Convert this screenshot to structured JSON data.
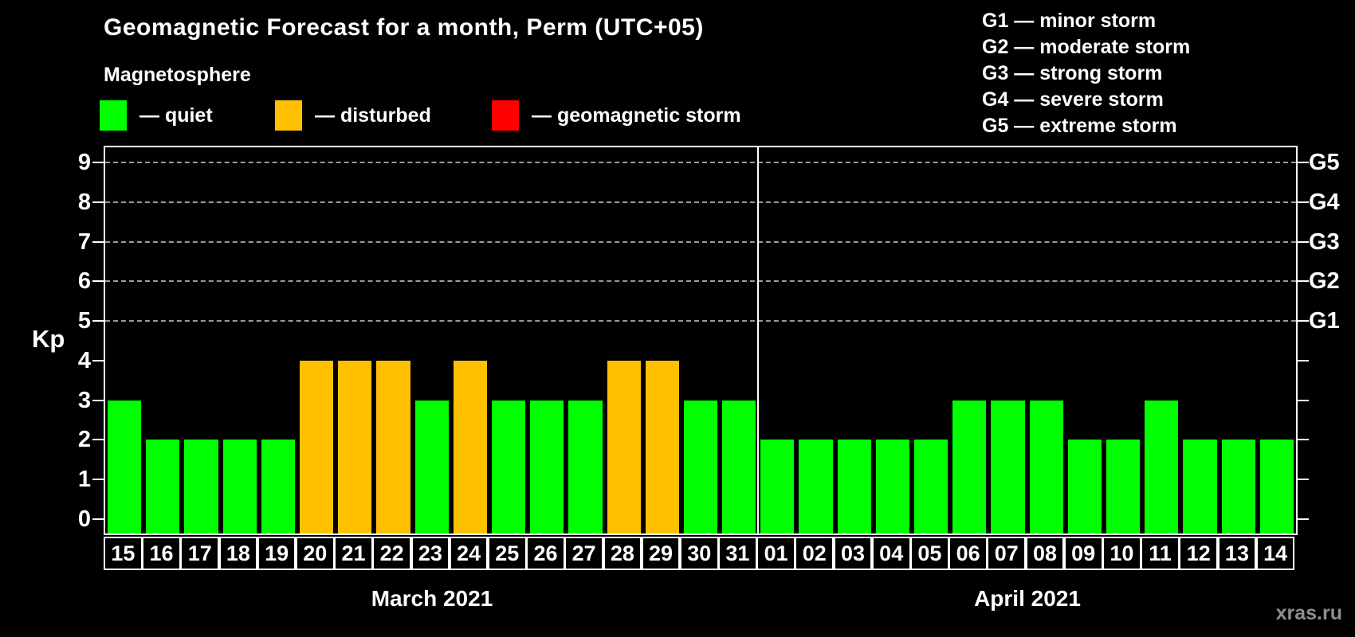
{
  "title": "Geomagnetic Forecast for a month, Perm (UTC+05)",
  "subtitle": "Magnetosphere",
  "legend": {
    "items": [
      {
        "key": "quiet",
        "label": "— quiet"
      },
      {
        "key": "disturbed",
        "label": "— disturbed"
      },
      {
        "key": "storm",
        "label": "— geomagnetic storm"
      }
    ]
  },
  "g_legend": [
    "G1 — minor storm",
    "G2 — moderate storm",
    "G3 — strong storm",
    "G4 — severe storm",
    "G5 — extreme storm"
  ],
  "watermark": "xras.ru",
  "colors": {
    "quiet": "#00ff00",
    "disturbed": "#ffc000",
    "storm": "#ff0000",
    "grid": "#9a9a9a",
    "axis": "#ffffff",
    "text": "#ffffff",
    "watermark": "#8f8f8f",
    "background": "#000000"
  },
  "chart_data": {
    "type": "bar",
    "ylabel": "Kp",
    "ylim": [
      0,
      9
    ],
    "yticks": [
      0,
      1,
      2,
      3,
      4,
      5,
      6,
      7,
      8,
      9
    ],
    "dashed_gridlines_at_kp": [
      5,
      6,
      7,
      8,
      9
    ],
    "right_axis_labels": [
      {
        "kp": 5,
        "label": "G1"
      },
      {
        "kp": 6,
        "label": "G2"
      },
      {
        "kp": 7,
        "label": "G3"
      },
      {
        "kp": 8,
        "label": "G4"
      },
      {
        "kp": 9,
        "label": "G5"
      }
    ],
    "groups": [
      {
        "month": "March 2021",
        "days": [
          "15",
          "16",
          "17",
          "18",
          "19",
          "20",
          "21",
          "22",
          "23",
          "24",
          "25",
          "26",
          "27",
          "28",
          "29",
          "30",
          "31"
        ],
        "values": [
          3,
          2,
          2,
          2,
          2,
          4,
          4,
          4,
          3,
          4,
          3,
          3,
          3,
          4,
          4,
          3,
          3
        ],
        "status": [
          "quiet",
          "quiet",
          "quiet",
          "quiet",
          "quiet",
          "disturbed",
          "disturbed",
          "disturbed",
          "quiet",
          "disturbed",
          "quiet",
          "quiet",
          "quiet",
          "disturbed",
          "disturbed",
          "quiet",
          "quiet"
        ]
      },
      {
        "month": "April 2021",
        "days": [
          "01",
          "02",
          "03",
          "04",
          "05",
          "06",
          "07",
          "08",
          "09",
          "10",
          "11",
          "12",
          "13",
          "14"
        ],
        "values": [
          2,
          2,
          2,
          2,
          2,
          3,
          3,
          3,
          2,
          2,
          3,
          2,
          2,
          2
        ],
        "status": [
          "quiet",
          "quiet",
          "quiet",
          "quiet",
          "quiet",
          "quiet",
          "quiet",
          "quiet",
          "quiet",
          "quiet",
          "quiet",
          "quiet",
          "quiet",
          "quiet"
        ]
      }
    ]
  }
}
